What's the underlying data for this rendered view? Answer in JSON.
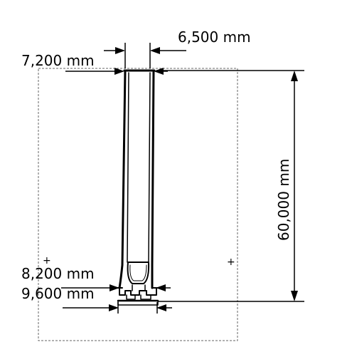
{
  "drawing": {
    "labels": {
      "width_outer": "6,500 mm",
      "width_top": "7,200 mm",
      "height_total": "60,000 mm",
      "width_inner_bottom": "8,200 mm",
      "width_base": "9,600 mm"
    },
    "markers": {
      "center_left": "+",
      "center_right": "+"
    },
    "colors": {
      "line": "#000000",
      "frame": "#555555",
      "background": "#ffffff"
    }
  }
}
